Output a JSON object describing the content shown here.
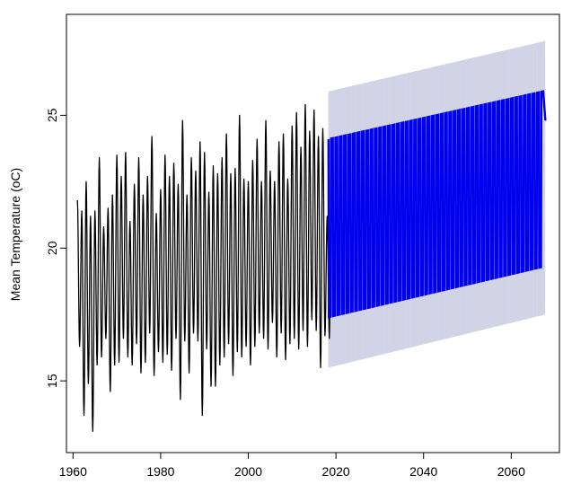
{
  "chart_data": {
    "type": "line",
    "title": "",
    "xlabel": "",
    "ylabel": "Mean Temperature (oC)",
    "xlim": [
      1958.5,
      2071
    ],
    "ylim": [
      12.3,
      28.8
    ],
    "grid": false,
    "legend": "none",
    "x_ticks": [
      1960,
      1980,
      2000,
      2020,
      2040,
      2060
    ],
    "x_tick_labels": [
      "1960",
      "1980",
      "2000",
      "2020",
      "2040",
      "2060"
    ],
    "y_ticks": [
      15,
      20,
      25
    ],
    "y_tick_labels": [
      "15",
      "20",
      "25"
    ],
    "series": [
      {
        "kind": "observed",
        "color": "#000000",
        "start": 1961.0,
        "end": 2018.3,
        "peaks": [
          {
            "year": 1961,
            "value": 21.8
          },
          {
            "year": 1962,
            "value": 21.4
          },
          {
            "year": 1963,
            "value": 22.5
          },
          {
            "year": 1964,
            "value": 21.2
          },
          {
            "year": 1965,
            "value": 21.4
          },
          {
            "year": 1966,
            "value": 23.4
          },
          {
            "year": 1967,
            "value": 20.8
          },
          {
            "year": 1968,
            "value": 21.5
          },
          {
            "year": 1969,
            "value": 22.0
          },
          {
            "year": 1970,
            "value": 23.5
          },
          {
            "year": 1971,
            "value": 22.7
          },
          {
            "year": 1972,
            "value": 23.6
          },
          {
            "year": 1973,
            "value": 21.0
          },
          {
            "year": 1974,
            "value": 22.4
          },
          {
            "year": 1975,
            "value": 23.4
          },
          {
            "year": 1976,
            "value": 22.0
          },
          {
            "year": 1977,
            "value": 22.7
          },
          {
            "year": 1978,
            "value": 24.2
          },
          {
            "year": 1979,
            "value": 21.3
          },
          {
            "year": 1980,
            "value": 22.2
          },
          {
            "year": 1981,
            "value": 23.5
          },
          {
            "year": 1982,
            "value": 22.7
          },
          {
            "year": 1983,
            "value": 23.2
          },
          {
            "year": 1984,
            "value": 22.4
          },
          {
            "year": 1985,
            "value": 24.8
          },
          {
            "year": 1986,
            "value": 22.0
          },
          {
            "year": 1987,
            "value": 23.4
          },
          {
            "year": 1988,
            "value": 22.9
          },
          {
            "year": 1989,
            "value": 24.0
          },
          {
            "year": 1990,
            "value": 23.6
          },
          {
            "year": 1991,
            "value": 22.1
          },
          {
            "year": 1992,
            "value": 23.1
          },
          {
            "year": 1993,
            "value": 22.8
          },
          {
            "year": 1994,
            "value": 23.4
          },
          {
            "year": 1995,
            "value": 24.3
          },
          {
            "year": 1996,
            "value": 22.8
          },
          {
            "year": 1997,
            "value": 23.0
          },
          {
            "year": 1998,
            "value": 25.0
          },
          {
            "year": 1999,
            "value": 22.6
          },
          {
            "year": 2000,
            "value": 22.5
          },
          {
            "year": 2001,
            "value": 23.3
          },
          {
            "year": 2002,
            "value": 24.1
          },
          {
            "year": 2003,
            "value": 22.5
          },
          {
            "year": 2004,
            "value": 24.8
          },
          {
            "year": 2005,
            "value": 22.9
          },
          {
            "year": 2006,
            "value": 22.5
          },
          {
            "year": 2007,
            "value": 24.0
          },
          {
            "year": 2008,
            "value": 24.3
          },
          {
            "year": 2009,
            "value": 22.6
          },
          {
            "year": 2010,
            "value": 24.6
          },
          {
            "year": 2011,
            "value": 25.1
          },
          {
            "year": 2012,
            "value": 23.8
          },
          {
            "year": 2013,
            "value": 25.4
          },
          {
            "year": 2014,
            "value": 24.4
          },
          {
            "year": 2015,
            "value": 25.2
          },
          {
            "year": 2016,
            "value": 24.2
          },
          {
            "year": 2017,
            "value": 24.5
          },
          {
            "year": 2018,
            "value": 21.2
          }
        ],
        "troughs": [
          {
            "year": 1961,
            "value": 16.3
          },
          {
            "year": 1962,
            "value": 13.7
          },
          {
            "year": 1963,
            "value": 14.9
          },
          {
            "year": 1964,
            "value": 13.1
          },
          {
            "year": 1965,
            "value": 15.6
          },
          {
            "year": 1966,
            "value": 15.9
          },
          {
            "year": 1967,
            "value": 16.6
          },
          {
            "year": 1968,
            "value": 14.6
          },
          {
            "year": 1969,
            "value": 15.6
          },
          {
            "year": 1970,
            "value": 15.7
          },
          {
            "year": 1971,
            "value": 16.6
          },
          {
            "year": 1972,
            "value": 15.9
          },
          {
            "year": 1973,
            "value": 15.6
          },
          {
            "year": 1974,
            "value": 16.4
          },
          {
            "year": 1975,
            "value": 15.3
          },
          {
            "year": 1976,
            "value": 15.7
          },
          {
            "year": 1977,
            "value": 16.8
          },
          {
            "year": 1978,
            "value": 15.2
          },
          {
            "year": 1979,
            "value": 16.1
          },
          {
            "year": 1980,
            "value": 15.7
          },
          {
            "year": 1981,
            "value": 16.0
          },
          {
            "year": 1982,
            "value": 15.4
          },
          {
            "year": 1983,
            "value": 16.6
          },
          {
            "year": 1984,
            "value": 14.3
          },
          {
            "year": 1985,
            "value": 16.5
          },
          {
            "year": 1986,
            "value": 15.3
          },
          {
            "year": 1987,
            "value": 16.8
          },
          {
            "year": 1988,
            "value": 16.5
          },
          {
            "year": 1989,
            "value": 13.7
          },
          {
            "year": 1990,
            "value": 16.2
          },
          {
            "year": 1991,
            "value": 14.8
          },
          {
            "year": 1992,
            "value": 14.8
          },
          {
            "year": 1993,
            "value": 15.6
          },
          {
            "year": 1994,
            "value": 15.9
          },
          {
            "year": 1995,
            "value": 16.4
          },
          {
            "year": 1996,
            "value": 15.2
          },
          {
            "year": 1997,
            "value": 16.1
          },
          {
            "year": 1998,
            "value": 15.9
          },
          {
            "year": 1999,
            "value": 16.3
          },
          {
            "year": 2000,
            "value": 15.6
          },
          {
            "year": 2001,
            "value": 16.3
          },
          {
            "year": 2002,
            "value": 16.8
          },
          {
            "year": 2003,
            "value": 16.6
          },
          {
            "year": 2004,
            "value": 16.2
          },
          {
            "year": 2005,
            "value": 17.2
          },
          {
            "year": 2006,
            "value": 15.9
          },
          {
            "year": 2007,
            "value": 16.8
          },
          {
            "year": 2008,
            "value": 15.8
          },
          {
            "year": 2009,
            "value": 16.4
          },
          {
            "year": 2010,
            "value": 16.6
          },
          {
            "year": 2011,
            "value": 16.2
          },
          {
            "year": 2012,
            "value": 16.9
          },
          {
            "year": 2013,
            "value": 16.3
          },
          {
            "year": 2014,
            "value": 17.3
          },
          {
            "year": 2015,
            "value": 16.9
          },
          {
            "year": 2016,
            "value": 15.5
          },
          {
            "year": 2017,
            "value": 16.7
          },
          {
            "year": 2018,
            "value": 16.6
          }
        ]
      },
      {
        "kind": "forecast",
        "color": "#0000ee",
        "start": 2018.3,
        "end": 2067.8,
        "peak_trend": [
          {
            "year": 2018.3,
            "value": 24.1
          },
          {
            "year": 2067.3,
            "value": 25.9
          }
        ],
        "trough_trend": [
          {
            "year": 2018.3,
            "value": 17.4
          },
          {
            "year": 2067.3,
            "value": 19.3
          }
        ],
        "last_value": 24.8
      },
      {
        "kind": "forecast-interval",
        "color": "#9aa0c8",
        "start": 2018.3,
        "end": 2067.8,
        "upper_start": 25.9,
        "upper_end": 27.8,
        "lower_start": 15.5,
        "lower_end": 17.5
      }
    ]
  }
}
